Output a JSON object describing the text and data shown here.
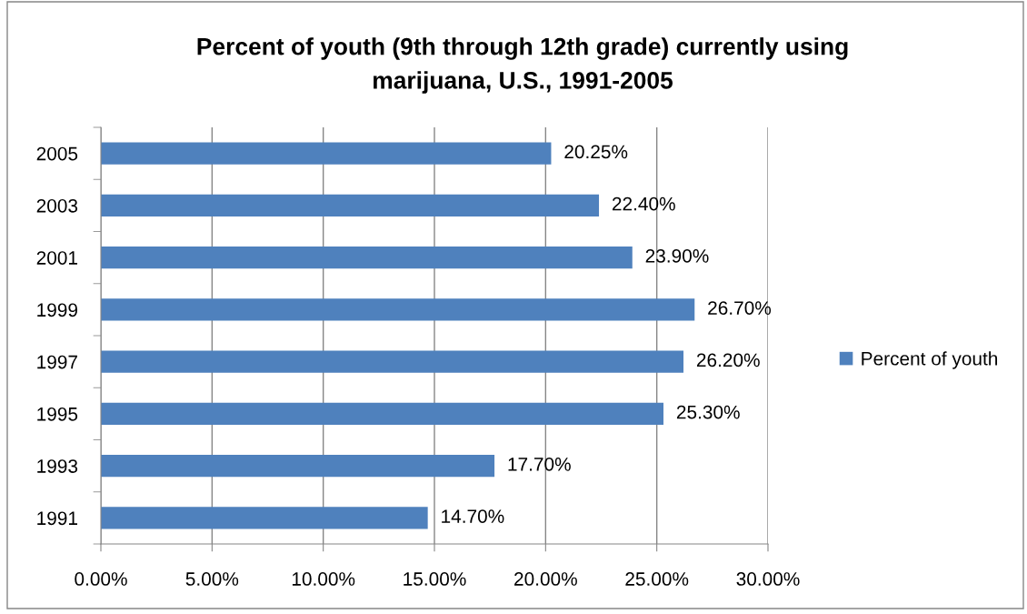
{
  "chart_data": {
    "type": "bar",
    "orientation": "horizontal",
    "title": "Percent of youth (9th through 12th grade) currently using\nmarijuana, U.S., 1991-2005",
    "categories": [
      "2005",
      "2003",
      "2001",
      "1999",
      "1997",
      "1995",
      "1993",
      "1991"
    ],
    "series": [
      {
        "name": "Percent of youth",
        "color": "#4f81bd",
        "values": [
          20.25,
          22.4,
          23.9,
          26.7,
          26.2,
          25.3,
          17.7,
          14.7
        ],
        "value_labels": [
          "20.25%",
          "22.40%",
          "23.90%",
          "26.70%",
          "26.20%",
          "25.30%",
          "17.70%",
          "14.70%"
        ]
      }
    ],
    "xlim": [
      0,
      30
    ],
    "xticks": [
      {
        "value": 0,
        "label": "0.00%"
      },
      {
        "value": 5,
        "label": "5.00%"
      },
      {
        "value": 10,
        "label": "10.00%"
      },
      {
        "value": 15,
        "label": "15.00%"
      },
      {
        "value": 20,
        "label": "20.00%"
      },
      {
        "value": 25,
        "label": "25.00%"
      },
      {
        "value": 30,
        "label": "30.00%"
      }
    ],
    "grid": "x",
    "legend": "right"
  }
}
